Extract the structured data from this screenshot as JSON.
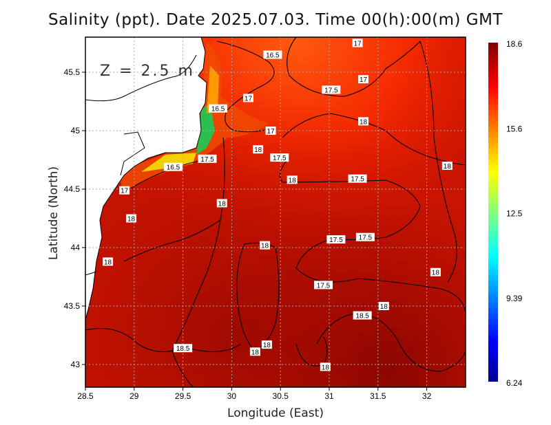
{
  "title": "Salinity (ppt). Date 2025.07.03. Time 00(h):00(m) GMT",
  "depth_label": "Z = 2.5 m",
  "x_axis": {
    "label": "Longitude (East)",
    "ticks": [
      "28.5",
      "29",
      "29.5",
      "30",
      "30.5",
      "31",
      "31.5",
      "32"
    ],
    "range": [
      28.5,
      32.4
    ]
  },
  "y_axis": {
    "label": "Latitude (North)",
    "ticks": [
      "43",
      "43.5",
      "44",
      "44.5",
      "45",
      "45.5"
    ],
    "range": [
      42.8,
      45.8
    ]
  },
  "colorbar": {
    "ticks": [
      "18.6",
      "15.6",
      "12.5",
      "9.39",
      "6.24"
    ],
    "min": 6.24,
    "max": 18.6,
    "colormap": "jet"
  },
  "colors": {
    "land": "#ffffff",
    "sea_base": "#cc1400",
    "contour": "#000000",
    "grid": "#b0b0b0"
  },
  "contour_labels": [
    {
      "text": "17",
      "lon": 31.29,
      "lat": 45.75
    },
    {
      "text": "16.5",
      "lon": 30.42,
      "lat": 45.65
    },
    {
      "text": "17",
      "lon": 31.35,
      "lat": 45.44
    },
    {
      "text": "17.5",
      "lon": 31.02,
      "lat": 45.35
    },
    {
      "text": "17",
      "lon": 30.17,
      "lat": 45.28
    },
    {
      "text": "16.5",
      "lon": 29.86,
      "lat": 45.19
    },
    {
      "text": "17",
      "lon": 30.4,
      "lat": 45.0
    },
    {
      "text": "18",
      "lon": 31.35,
      "lat": 45.08
    },
    {
      "text": "18",
      "lon": 30.27,
      "lat": 44.84
    },
    {
      "text": "17.5",
      "lon": 30.49,
      "lat": 44.77
    },
    {
      "text": "17.5",
      "lon": 29.75,
      "lat": 44.76
    },
    {
      "text": "16.5",
      "lon": 29.4,
      "lat": 44.69
    },
    {
      "text": "18",
      "lon": 32.21,
      "lat": 44.7
    },
    {
      "text": "18",
      "lon": 30.62,
      "lat": 44.58
    },
    {
      "text": "17.5",
      "lon": 31.29,
      "lat": 44.59
    },
    {
      "text": "17",
      "lon": 28.9,
      "lat": 44.49
    },
    {
      "text": "18",
      "lon": 29.9,
      "lat": 44.38
    },
    {
      "text": "18",
      "lon": 28.97,
      "lat": 44.25
    },
    {
      "text": "17.5",
      "lon": 31.07,
      "lat": 44.07
    },
    {
      "text": "17.5",
      "lon": 31.37,
      "lat": 44.09
    },
    {
      "text": "18",
      "lon": 30.34,
      "lat": 44.02
    },
    {
      "text": "18",
      "lon": 28.73,
      "lat": 43.88
    },
    {
      "text": "18",
      "lon": 32.09,
      "lat": 43.79
    },
    {
      "text": "17.5",
      "lon": 30.94,
      "lat": 43.68
    },
    {
      "text": "18",
      "lon": 31.56,
      "lat": 43.5
    },
    {
      "text": "18.5",
      "lon": 31.34,
      "lat": 43.42
    },
    {
      "text": "18",
      "lon": 30.36,
      "lat": 43.17
    },
    {
      "text": "18.5",
      "lon": 29.5,
      "lat": 43.14
    },
    {
      "text": "18",
      "lon": 30.24,
      "lat": 43.11
    },
    {
      "text": "18",
      "lon": 30.96,
      "lat": 42.98
    }
  ]
}
